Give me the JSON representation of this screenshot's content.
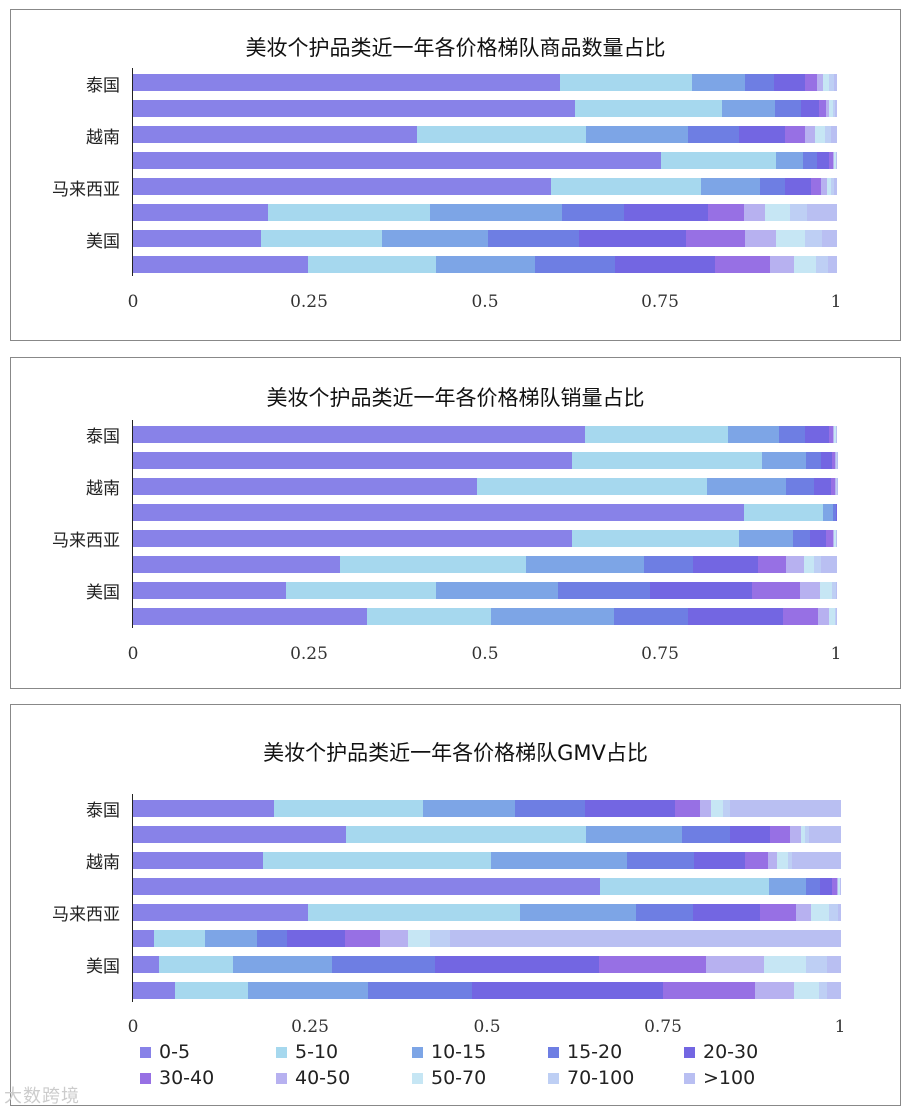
{
  "legend": [
    {
      "label": "0-5",
      "color": "#8882E8"
    },
    {
      "label": "5-10",
      "color": "#A6D8EE"
    },
    {
      "label": "10-15",
      "color": "#7DA5E6"
    },
    {
      "label": "15-20",
      "color": "#6E7EE3"
    },
    {
      "label": "20-30",
      "color": "#7366E2"
    },
    {
      "label": "30-40",
      "color": "#9770E4"
    },
    {
      "label": "40-50",
      "color": "#B7B1F0"
    },
    {
      "label": "50-70",
      "color": "#C6E6F4"
    },
    {
      "label": "70-100",
      "color": "#BECFF4"
    },
    {
      "label": ">100",
      "color": "#B9BFF2"
    }
  ],
  "watermark": "大数跨境",
  "chart_data": [
    {
      "type": "bar",
      "orientation": "horizontal-stacked-100",
      "title": "美妆个护品类近一年各价格梯队商品数量占比",
      "category_labels": [
        "泰国",
        "",
        "越南",
        "",
        "马来西亚",
        "",
        "美国",
        ""
      ],
      "xticks": [
        "0",
        "0.25",
        "0.5",
        "0.75",
        "1"
      ],
      "xlim": [
        0,
        1
      ],
      "series_names": [
        "0-5",
        "5-10",
        "10-15",
        "15-20",
        "20-30",
        "30-40",
        "40-50",
        "50-70",
        "70-100",
        ">100"
      ],
      "rows": [
        [
          0.606,
          0.188,
          0.075,
          0.041,
          0.044,
          0.017,
          0.009,
          0.009,
          0.007,
          0.004
        ],
        [
          0.628,
          0.209,
          0.075,
          0.037,
          0.026,
          0.009,
          0.004,
          0.006,
          0.003,
          0.003
        ],
        [
          0.403,
          0.241,
          0.145,
          0.072,
          0.065,
          0.029,
          0.014,
          0.014,
          0.009,
          0.008
        ],
        [
          0.75,
          0.164,
          0.038,
          0.019,
          0.017,
          0.006,
          0.002,
          0.002,
          0.001,
          0.001
        ],
        [
          0.594,
          0.213,
          0.083,
          0.036,
          0.037,
          0.015,
          0.008,
          0.006,
          0.004,
          0.004
        ],
        [
          0.192,
          0.23,
          0.188,
          0.088,
          0.119,
          0.051,
          0.03,
          0.035,
          0.024,
          0.043
        ],
        [
          0.182,
          0.171,
          0.151,
          0.13,
          0.152,
          0.083,
          0.044,
          0.042,
          0.024,
          0.021
        ],
        [
          0.249,
          0.181,
          0.141,
          0.114,
          0.142,
          0.078,
          0.034,
          0.031,
          0.018,
          0.012
        ]
      ]
    },
    {
      "type": "bar",
      "orientation": "horizontal-stacked-100",
      "title": "美妆个护品类近一年各价格梯队销量占比",
      "category_labels": [
        "泰国",
        "",
        "越南",
        "",
        "马来西亚",
        "",
        "美国",
        ""
      ],
      "xticks": [
        "0",
        "0.25",
        "0.5",
        "0.75",
        "1"
      ],
      "xlim": [
        0,
        1
      ],
      "series_names": [
        "0-5",
        "5-10",
        "10-15",
        "15-20",
        "20-30",
        "30-40",
        "40-50",
        "50-70",
        "70-100",
        ">100"
      ],
      "rows": [
        [
          0.642,
          0.203,
          0.072,
          0.037,
          0.034,
          0.006,
          0.002,
          0.002,
          0.001,
          0.001
        ],
        [
          0.623,
          0.27,
          0.063,
          0.021,
          0.016,
          0.004,
          0.001,
          0.001,
          0.0005,
          0.0005
        ],
        [
          0.489,
          0.327,
          0.112,
          0.04,
          0.024,
          0.006,
          0.001,
          0.0005,
          0.0005,
          0.0005
        ],
        [
          0.868,
          0.112,
          0.014,
          0.004,
          0.002,
          0.0,
          0.0,
          0.0,
          0.0,
          0.0
        ],
        [
          0.623,
          0.238,
          0.076,
          0.025,
          0.023,
          0.009,
          0.002,
          0.002,
          0.001,
          0.001
        ],
        [
          0.294,
          0.264,
          0.168,
          0.069,
          0.093,
          0.039,
          0.026,
          0.014,
          0.011,
          0.022
        ],
        [
          0.218,
          0.212,
          0.174,
          0.13,
          0.146,
          0.067,
          0.029,
          0.017,
          0.005,
          0.002
        ],
        [
          0.332,
          0.176,
          0.175,
          0.105,
          0.136,
          0.049,
          0.016,
          0.008,
          0.002,
          0.001
        ]
      ]
    },
    {
      "type": "bar",
      "orientation": "horizontal-stacked-100",
      "title": "美妆个护品类近一年各价格梯队GMV占比",
      "category_labels": [
        "泰国",
        "",
        "越南",
        "",
        "马来西亚",
        "",
        "美国",
        ""
      ],
      "xticks": [
        "0",
        "0.25",
        "0.5",
        "0.75",
        "1"
      ],
      "xlim": [
        0,
        1
      ],
      "series_names": [
        "0-5",
        "5-10",
        "10-15",
        "15-20",
        "20-30",
        "30-40",
        "40-50",
        "50-70",
        "70-100",
        ">100"
      ],
      "rows": [
        [
          0.199,
          0.211,
          0.13,
          0.099,
          0.127,
          0.035,
          0.016,
          0.016,
          0.01,
          0.157
        ],
        [
          0.299,
          0.337,
          0.134,
          0.067,
          0.057,
          0.027,
          0.016,
          0.006,
          0.005,
          0.045
        ],
        [
          0.183,
          0.323,
          0.192,
          0.095,
          0.072,
          0.032,
          0.013,
          0.015,
          0.006,
          0.069
        ],
        [
          0.66,
          0.239,
          0.052,
          0.02,
          0.017,
          0.006,
          0.002,
          0.002,
          0.001,
          0.001
        ],
        [
          0.247,
          0.299,
          0.165,
          0.08,
          0.095,
          0.051,
          0.02,
          0.026,
          0.013,
          0.004
        ],
        [
          0.03,
          0.071,
          0.074,
          0.042,
          0.083,
          0.049,
          0.039,
          0.031,
          0.029,
          0.552
        ],
        [
          0.037,
          0.104,
          0.14,
          0.146,
          0.231,
          0.151,
          0.083,
          0.059,
          0.029,
          0.02
        ],
        [
          0.06,
          0.102,
          0.17,
          0.147,
          0.269,
          0.13,
          0.055,
          0.036,
          0.012,
          0.019
        ]
      ]
    }
  ]
}
